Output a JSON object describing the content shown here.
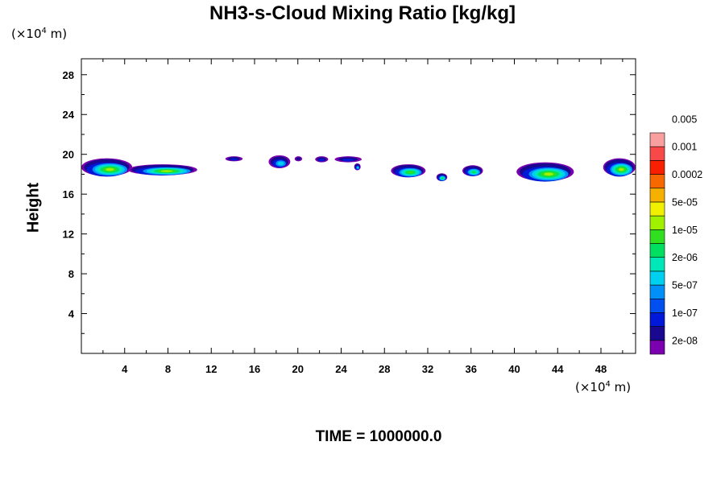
{
  "chart_data": {
    "type": "heatmap",
    "title": "NH3-s-Cloud Mixing Ratio [kg/kg]",
    "ylabel": "Height",
    "xlabel": "",
    "y_unit": {
      "prefix": "(×10",
      "exp": "4",
      "suffix": " m)"
    },
    "x_unit": {
      "prefix": "(×10",
      "exp": "4",
      "suffix": " m)"
    },
    "xlim": [
      0,
      51.2
    ],
    "ylim": [
      0,
      29.6
    ],
    "xticks": [
      4,
      8,
      12,
      16,
      20,
      24,
      28,
      32,
      36,
      40,
      44,
      48
    ],
    "yticks": [
      4,
      8,
      12,
      16,
      20,
      24,
      28
    ],
    "footer": "TIME = 1000000.0",
    "colorbar": {
      "colors": [
        "#7a00b0",
        "#1a0890",
        "#0018d8",
        "#0050f0",
        "#0090f8",
        "#00d0f0",
        "#00e8b8",
        "#00e060",
        "#30e020",
        "#a0f000",
        "#f0f000",
        "#f8b000",
        "#f86800",
        "#f82000",
        "#f84848",
        "#f8a0a0"
      ],
      "labels": [
        "2e-08",
        "1e-07",
        "5e-07",
        "2e-06",
        "1e-05",
        "5e-05",
        "0.0002",
        "0.001",
        "0.005"
      ]
    },
    "clouds": [
      {
        "x0": 0.0,
        "x1": 4.7,
        "y0": 17.8,
        "y1": 19.6,
        "peak": 9
      },
      {
        "x0": 4.3,
        "x1": 10.7,
        "y0": 17.9,
        "y1": 19.0,
        "peak": 9
      },
      {
        "x0": 13.3,
        "x1": 14.9,
        "y0": 19.3,
        "y1": 19.8,
        "peak": 2
      },
      {
        "x0": 17.3,
        "x1": 19.3,
        "y0": 18.6,
        "y1": 19.9,
        "peak": 5
      },
      {
        "x0": 19.7,
        "x1": 20.4,
        "y0": 19.3,
        "y1": 19.8,
        "peak": 1
      },
      {
        "x0": 21.6,
        "x1": 22.8,
        "y0": 19.2,
        "y1": 19.8,
        "peak": 2
      },
      {
        "x0": 23.4,
        "x1": 25.9,
        "y0": 19.2,
        "y1": 19.8,
        "peak": 2
      },
      {
        "x0": 25.2,
        "x1": 25.8,
        "y0": 18.4,
        "y1": 19.1,
        "peak": 5
      },
      {
        "x0": 28.6,
        "x1": 31.8,
        "y0": 17.7,
        "y1": 19.0,
        "peak": 8
      },
      {
        "x0": 32.8,
        "x1": 33.8,
        "y0": 17.3,
        "y1": 18.1,
        "peak": 7
      },
      {
        "x0": 35.2,
        "x1": 37.1,
        "y0": 17.8,
        "y1": 18.9,
        "peak": 7
      },
      {
        "x0": 40.2,
        "x1": 45.5,
        "y0": 17.3,
        "y1": 19.2,
        "peak": 9
      },
      {
        "x0": 48.2,
        "x1": 51.2,
        "y0": 17.8,
        "y1": 19.6,
        "peak": 9
      }
    ]
  }
}
